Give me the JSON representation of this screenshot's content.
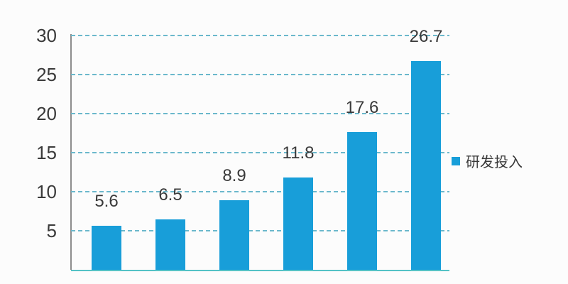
{
  "chart_data": {
    "type": "bar",
    "values": [
      5.6,
      6.5,
      8.9,
      11.8,
      17.6,
      26.7
    ],
    "value_labels": [
      "5.6",
      "6.5",
      "8.9",
      "11.8",
      "17.6",
      "26.7"
    ],
    "y_axis": {
      "ticks": [
        30,
        25,
        20,
        15,
        10,
        5
      ],
      "min": 0,
      "max": 30
    },
    "grid": {
      "style": "dashed",
      "orientation": "horizontal"
    },
    "legend": {
      "label": "研发投入",
      "marker": "square",
      "position": "right-middle"
    },
    "series_name": "研发投入"
  },
  "colors": {
    "bar": "#189ED9",
    "gridline": "#6BB8CC",
    "baseline": "#54C2C6",
    "axis_line": "#8D8D8D",
    "text": "#3A3A3A",
    "background": "#FCFCFC"
  }
}
